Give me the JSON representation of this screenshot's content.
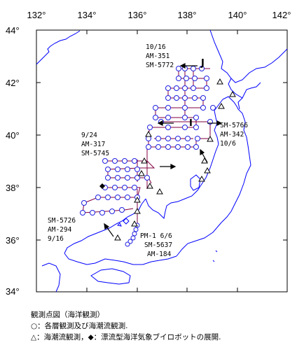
{
  "map": {
    "x_ticks": [
      "132°",
      "134°",
      "136°",
      "138°",
      "140°",
      "142°"
    ],
    "y_ticks": [
      "44°",
      "42°",
      "40°",
      "38°",
      "36°",
      "34°"
    ],
    "annotations": [
      {
        "id": "north",
        "lines": [
          "10/16",
          "AM-351",
          "SM-5772"
        ]
      },
      {
        "id": "east",
        "lines": [
          "SM-5766",
          "AM-342",
          "10/6"
        ]
      },
      {
        "id": "west",
        "lines": [
          "9/24",
          "AM-317",
          "SM-5745"
        ]
      },
      {
        "id": "southwest",
        "lines": [
          "SM-5726",
          "AM-294",
          "9/16"
        ]
      },
      {
        "id": "south",
        "lines": [
          "PM-1 6/6",
          "SM-5637",
          "AM-184"
        ]
      }
    ],
    "line_markers": [
      "J",
      "I"
    ]
  },
  "legend": {
    "title": "観測点図（海洋観測）",
    "item1": "○：各層観測及び海潮流観測.",
    "item2": "△：海潮流観測，◆：漂流型海洋気象ブイロボットの展開."
  },
  "colors": {
    "track": "#800040",
    "station": "#2020e0",
    "coast": "#0000ff",
    "frame": "#000000"
  }
}
